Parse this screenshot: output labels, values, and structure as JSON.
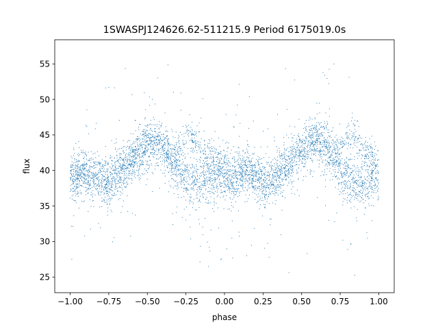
{
  "chart_data": {
    "type": "scatter",
    "title": "1SWASPJ124626.62-511215.9 Period 6175019.0s",
    "xlabel": "phase",
    "ylabel": "flux",
    "xlim": [
      -1.1,
      1.1
    ],
    "ylim": [
      22.8,
      58.4
    ],
    "xticks": [
      -1.0,
      -0.75,
      -0.5,
      -0.25,
      0.0,
      0.25,
      0.5,
      0.75,
      1.0
    ],
    "xtick_labels": [
      "−1.00",
      "−0.75",
      "−0.50",
      "−0.25",
      "0.00",
      "0.25",
      "0.50",
      "0.75",
      "1.00"
    ],
    "yticks": [
      25,
      30,
      35,
      40,
      45,
      50,
      55
    ],
    "ytick_labels": [
      "25",
      "30",
      "35",
      "40",
      "45",
      "50",
      "55"
    ],
    "grid": false,
    "point_color": "#1f77b4",
    "series": [
      {
        "phase": [
          -1.0,
          -0.95,
          -0.9,
          -0.85,
          -0.8,
          -0.75,
          -0.7,
          -0.65,
          -0.6,
          -0.55,
          -0.5,
          -0.45,
          -0.4,
          -0.35,
          -0.3,
          -0.25,
          -0.2,
          -0.15,
          -0.1,
          -0.05,
          0.0,
          0.05,
          0.1,
          0.15,
          0.2,
          0.25,
          0.3,
          0.35,
          0.4,
          0.45,
          0.5,
          0.55,
          0.6,
          0.65,
          0.7,
          0.75,
          0.8,
          0.85,
          0.9,
          0.95,
          1.0
        ],
        "flux_main": [
          38.5,
          39.5,
          39.8,
          39.0,
          38.6,
          38.5,
          39.5,
          40.5,
          41.5,
          42.5,
          43.5,
          44.0,
          43.5,
          42.0,
          40.0,
          38.8,
          38.2,
          38.4,
          39.0,
          39.2,
          38.8,
          38.5,
          39.5,
          39.8,
          39.0,
          38.6,
          38.5,
          39.5,
          40.5,
          41.5,
          42.5,
          43.5,
          44.0,
          43.5,
          42.0,
          40.0,
          38.8,
          38.2,
          38.4,
          39.0,
          38.8
        ],
        "flux_secondary": [
          null,
          null,
          null,
          null,
          null,
          null,
          null,
          null,
          null,
          null,
          null,
          null,
          null,
          null,
          42.5,
          45.0,
          44.5,
          43.0,
          42.0,
          41.5,
          41.0,
          null,
          null,
          null,
          null,
          null,
          null,
          null,
          null,
          null,
          null,
          null,
          null,
          null,
          null,
          42.5,
          45.0,
          44.5,
          43.0,
          42.0,
          41.5
        ]
      }
    ]
  }
}
